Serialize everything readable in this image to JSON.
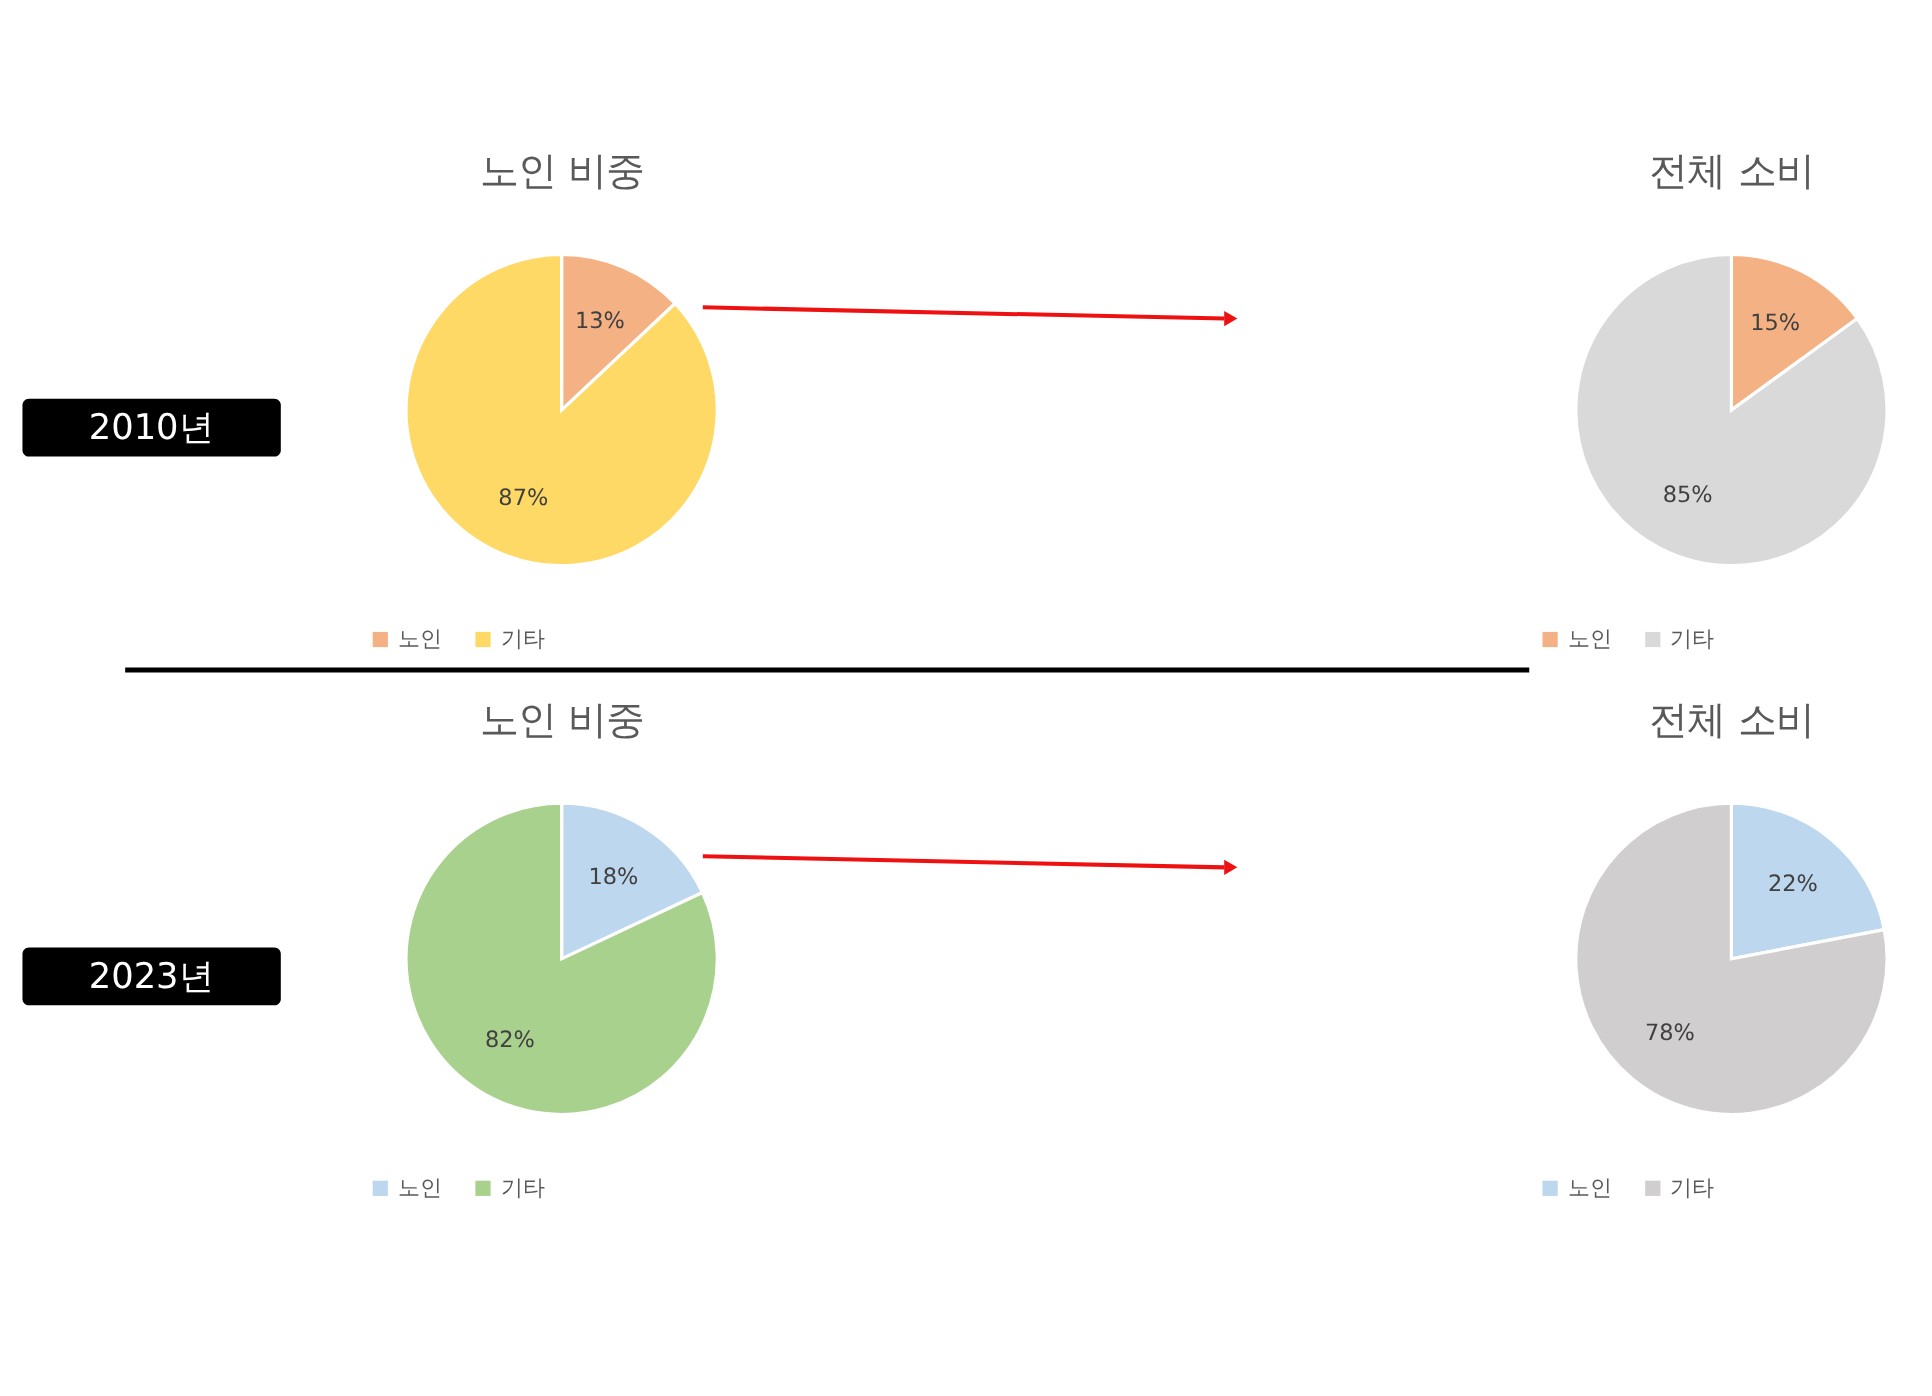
{
  "chart_data": [
    {
      "type": "pie",
      "title": "노인 비중",
      "categories": [
        "노인",
        "기타"
      ],
      "values": [
        13,
        87
      ],
      "colors": [
        "#f4b183",
        "#ffd966"
      ],
      "value_labels": [
        "13%",
        "87%"
      ],
      "legend": "bottom",
      "annotations": [
        "2010년"
      ]
    },
    {
      "type": "pie",
      "title": "전체 소비",
      "categories": [
        "노인",
        "기타"
      ],
      "values": [
        15,
        85
      ],
      "colors": [
        "#f4b183",
        "#d9d9d9"
      ],
      "value_labels": [
        "15%",
        "85%"
      ],
      "legend": "bottom"
    },
    {
      "type": "pie",
      "title": "노인 비중",
      "categories": [
        "노인",
        "기타"
      ],
      "values": [
        18,
        82
      ],
      "colors": [
        "#bdd7ee",
        "#a9d18e"
      ],
      "value_labels": [
        "18%",
        "82%"
      ],
      "legend": "bottom",
      "annotations": [
        "2023년"
      ]
    },
    {
      "type": "pie",
      "title": "전체 소비",
      "categories": [
        "노인",
        "기타"
      ],
      "values": [
        22,
        78
      ],
      "colors": [
        "#bdd7ee",
        "#d0cece"
      ],
      "value_labels": [
        "22%",
        "78%"
      ],
      "legend": "bottom"
    }
  ]
}
